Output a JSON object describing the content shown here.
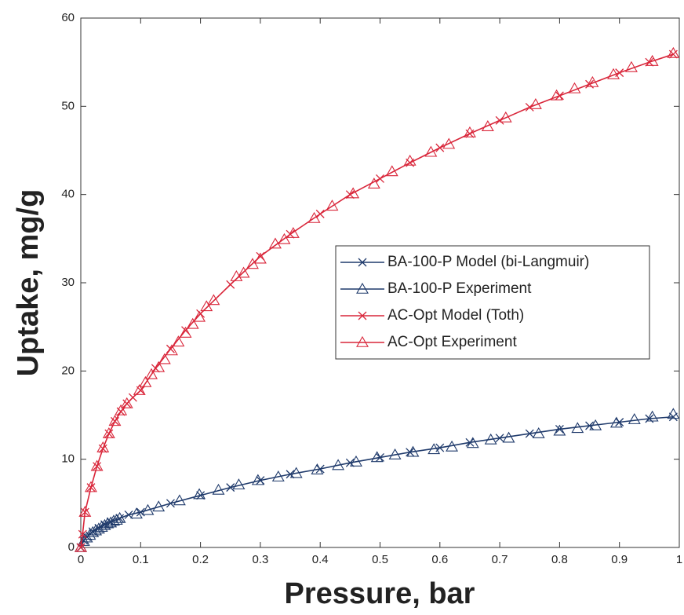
{
  "chart_data": {
    "type": "line",
    "x_label": "Pressure, bar",
    "y_label": "Uptake, mg/g",
    "xlim": [
      0,
      1
    ],
    "ylim": [
      0,
      60
    ],
    "xticks": [
      0,
      0.1,
      0.2,
      0.3,
      0.4,
      0.5,
      0.6,
      0.7,
      0.8,
      0.9,
      1
    ],
    "yticks": [
      0,
      10,
      20,
      30,
      40,
      50,
      60
    ],
    "legend": "right",
    "series": [
      {
        "name": "BA-100-P Model (bi-Langmuir)",
        "color": "#1f3a6b",
        "marker": "x",
        "line": true,
        "x": [
          0,
          0.005,
          0.01,
          0.02,
          0.03,
          0.04,
          0.05,
          0.065,
          0.08,
          0.1,
          0.15,
          0.2,
          0.25,
          0.3,
          0.35,
          0.4,
          0.45,
          0.5,
          0.55,
          0.6,
          0.65,
          0.7,
          0.75,
          0.8,
          0.85,
          0.9,
          0.95,
          0.99
        ],
        "values": [
          0,
          0.8,
          1.2,
          1.8,
          2.2,
          2.6,
          2.9,
          3.3,
          3.7,
          4.0,
          5.0,
          5.9,
          6.8,
          7.6,
          8.3,
          8.9,
          9.6,
          10.2,
          10.8,
          11.3,
          11.9,
          12.4,
          12.9,
          13.4,
          13.8,
          14.2,
          14.6,
          14.8
        ]
      },
      {
        "name": "BA-100-P Experiment",
        "color": "#1f3a6b",
        "marker": "triangle",
        "line": false,
        "x": [
          0,
          0.005,
          0.01,
          0.015,
          0.02,
          0.025,
          0.03,
          0.035,
          0.04,
          0.045,
          0.05,
          0.055,
          0.06,
          0.065,
          0.093,
          0.112,
          0.13,
          0.165,
          0.198,
          0.23,
          0.264,
          0.296,
          0.33,
          0.36,
          0.395,
          0.43,
          0.46,
          0.495,
          0.525,
          0.555,
          0.59,
          0.62,
          0.655,
          0.685,
          0.715,
          0.765,
          0.8,
          0.83,
          0.86,
          0.895,
          0.925,
          0.955,
          0.99
        ],
        "values": [
          0,
          0.7,
          1.1,
          1.4,
          1.7,
          1.9,
          2.1,
          2.3,
          2.5,
          2.7,
          2.8,
          3.0,
          3.1,
          3.3,
          3.8,
          4.2,
          4.6,
          5.3,
          6.0,
          6.5,
          7.1,
          7.6,
          8.0,
          8.4,
          8.8,
          9.3,
          9.7,
          10.2,
          10.5,
          10.8,
          11.1,
          11.4,
          11.8,
          12.2,
          12.4,
          12.9,
          13.2,
          13.5,
          13.8,
          14.1,
          14.5,
          14.8,
          15.1
        ]
      },
      {
        "name": "AC-Opt Model (Toth)",
        "color": "#d9263a",
        "marker": "x",
        "line": true,
        "x": [
          0,
          0.003,
          0.007,
          0.017,
          0.027,
          0.037,
          0.047,
          0.057,
          0.067,
          0.077,
          0.087,
          0.1,
          0.125,
          0.15,
          0.175,
          0.2,
          0.25,
          0.3,
          0.35,
          0.4,
          0.45,
          0.5,
          0.55,
          0.6,
          0.65,
          0.7,
          0.75,
          0.8,
          0.85,
          0.9,
          0.95,
          0.99
        ],
        "values": [
          0,
          1.5,
          4.0,
          6.8,
          9.2,
          11.2,
          12.9,
          14.3,
          15.4,
          16.3,
          17.0,
          17.8,
          20.3,
          22.5,
          24.6,
          26.5,
          29.8,
          33.0,
          35.5,
          37.8,
          40.0,
          41.8,
          43.6,
          45.3,
          46.9,
          48.4,
          49.9,
          51.2,
          52.5,
          53.8,
          55.0,
          55.9
        ]
      },
      {
        "name": "AC-Opt Experiment",
        "color": "#d9263a",
        "marker": "triangle",
        "line": false,
        "x": [
          0,
          0.007,
          0.017,
          0.027,
          0.037,
          0.047,
          0.057,
          0.067,
          0.077,
          0.098,
          0.108,
          0.118,
          0.13,
          0.14,
          0.152,
          0.163,
          0.175,
          0.187,
          0.198,
          0.21,
          0.222,
          0.26,
          0.272,
          0.287,
          0.3,
          0.325,
          0.34,
          0.355,
          0.39,
          0.42,
          0.455,
          0.49,
          0.52,
          0.55,
          0.585,
          0.615,
          0.65,
          0.68,
          0.71,
          0.76,
          0.795,
          0.825,
          0.855,
          0.89,
          0.92,
          0.955,
          0.99
        ],
        "values": [
          0,
          4.0,
          6.8,
          9.2,
          11.3,
          12.9,
          14.3,
          15.5,
          16.3,
          17.8,
          18.7,
          19.6,
          20.4,
          21.3,
          22.3,
          23.3,
          24.3,
          25.3,
          26.1,
          27.3,
          28.0,
          30.7,
          31.1,
          32.1,
          32.7,
          34.4,
          34.9,
          35.6,
          37.3,
          38.7,
          40.1,
          41.2,
          42.6,
          43.8,
          44.8,
          45.7,
          47.0,
          47.7,
          48.7,
          50.2,
          51.2,
          52.0,
          52.7,
          53.6,
          54.4,
          55.1,
          56.0
        ]
      }
    ]
  }
}
